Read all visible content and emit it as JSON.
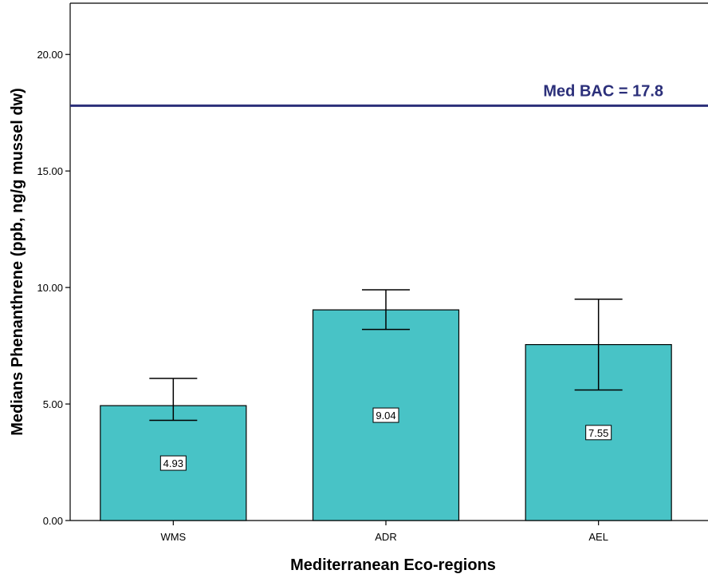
{
  "chart_data": {
    "type": "bar",
    "categories": [
      "WMS",
      "ADR",
      "AEL"
    ],
    "values": [
      4.93,
      9.04,
      7.55
    ],
    "data_labels": [
      "4.93",
      "9.04",
      "7.55"
    ],
    "error_bars": [
      {
        "low": 4.3,
        "high": 6.1
      },
      {
        "low": 8.2,
        "high": 9.9
      },
      {
        "low": 5.6,
        "high": 9.5
      }
    ],
    "ylim": [
      0,
      22.2
    ],
    "yticks": [
      0,
      5,
      10,
      15,
      20
    ],
    "ytick_labels": [
      "0.00",
      "5.00",
      "10.00",
      "15.00",
      "20.00"
    ],
    "xlabel": "Mediterranean Eco-regions",
    "ylabel": "Medians Phenanthrene (ppb, ng/g mussel dw)",
    "reference_line": {
      "value": 17.8,
      "label": "Med BAC = 17.8",
      "color": "#2b2f7a"
    },
    "bar_color": "#48c3c6",
    "grid": false
  }
}
